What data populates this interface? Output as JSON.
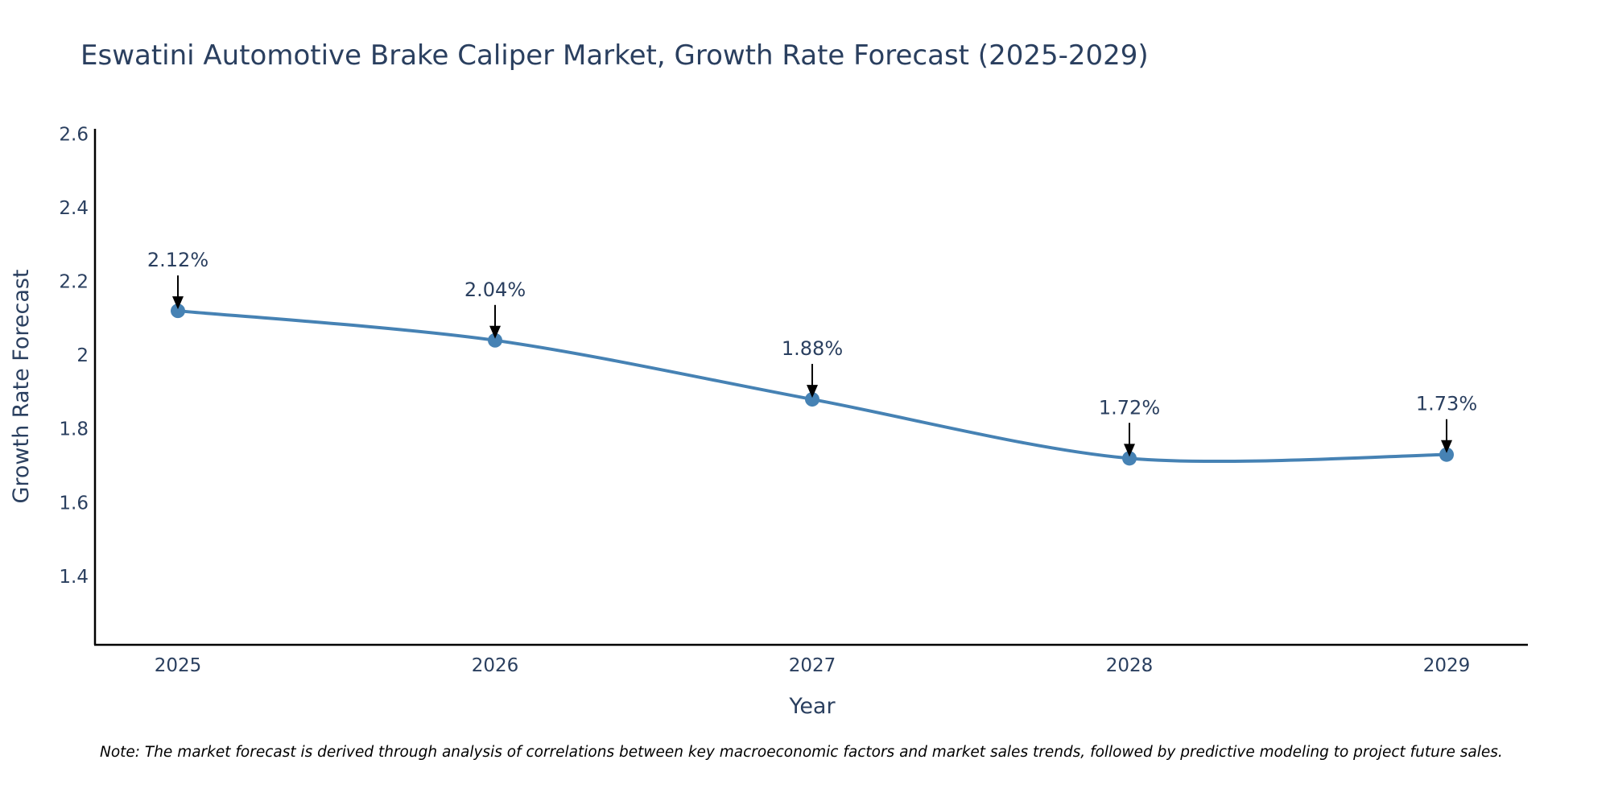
{
  "chart_data": {
    "type": "line",
    "title": "Eswatini Automotive Brake Caliper Market, Growth Rate Forecast (2025-2029)",
    "xlabel": "Year",
    "ylabel": "Growth Rate Forecast",
    "categories": [
      "2025",
      "2026",
      "2027",
      "2028",
      "2029"
    ],
    "series": [
      {
        "name": "Growth Rate Forecast",
        "values": [
          2.12,
          2.04,
          1.88,
          1.72,
          1.73
        ],
        "color": "#4682b4"
      }
    ],
    "annotations": [
      "2.12%",
      "2.04%",
      "1.88%",
      "1.72%",
      "1.73%"
    ],
    "ylim": [
      1.214,
      2.614
    ],
    "yticks": [
      1.4,
      1.6,
      1.8,
      2.0,
      2.2,
      2.4,
      2.6
    ],
    "ytick_labels": [
      "1.4",
      "1.6",
      "1.8",
      "2",
      "2.2",
      "2.4",
      "2.6"
    ],
    "grid": false,
    "note": "Note: The market forecast is derived through analysis of correlations between key macroeconomic factors and market sales trends, followed by predictive modeling to project future sales."
  }
}
